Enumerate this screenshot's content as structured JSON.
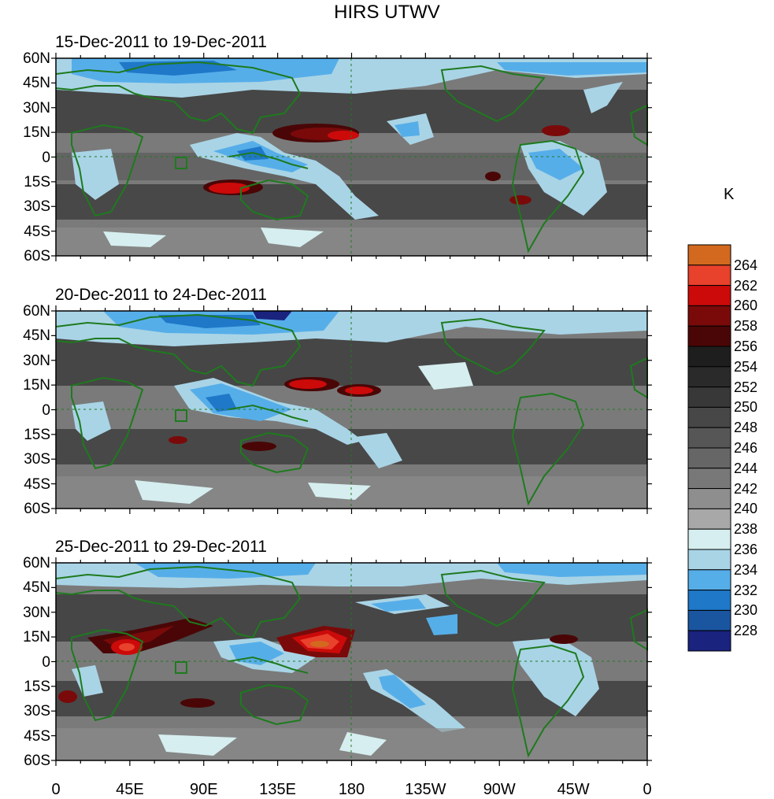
{
  "title": "HIRS UTWV",
  "panels": [
    {
      "label": "15-Dec-2011 to 19-Dec-2011"
    },
    {
      "label": "20-Dec-2011 to 24-Dec-2011"
    },
    {
      "label": "25-Dec-2011 to 29-Dec-2011"
    }
  ],
  "lat_labels": [
    "60N",
    "45N",
    "30N",
    "15N",
    "0",
    "15S",
    "30S",
    "45S",
    "60S"
  ],
  "lon_labels": [
    "0",
    "45E",
    "90E",
    "135E",
    "180",
    "135W",
    "90W",
    "45W",
    "0"
  ],
  "colorbar": {
    "unit": "K",
    "levels": [
      "264",
      "262",
      "260",
      "258",
      "256",
      "254",
      "252",
      "250",
      "248",
      "246",
      "244",
      "242",
      "240",
      "238",
      "236",
      "234",
      "232",
      "230",
      "228"
    ],
    "colors": [
      "#d2691e",
      "#e8412c",
      "#cc0a0a",
      "#7a0a0a",
      "#4a0606",
      "#1e1e1e",
      "#2a2a2a",
      "#383838",
      "#474747",
      "#565656",
      "#666666",
      "#787878",
      "#8e8e8e",
      "#a8a8a8",
      "#d6eeef",
      "#a9d4e6",
      "#56aee9",
      "#1f78c8",
      "#1a55a0",
      "#1a237e"
    ]
  },
  "map": {
    "lat_range": [
      -60,
      60
    ],
    "lon_range": [
      0,
      360
    ],
    "land_color": "#1e7a1e"
  }
}
